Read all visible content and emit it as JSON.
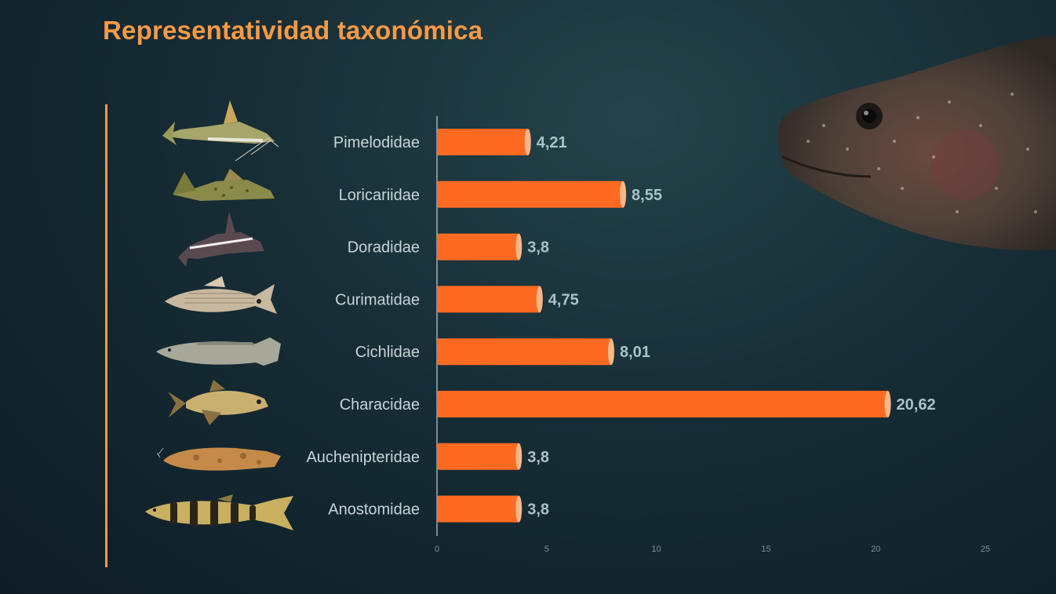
{
  "title": "Representatividad taxonómica",
  "colors": {
    "title": "#f79a45",
    "bar": "#ff6a22",
    "bar_cap": "#f7b78a",
    "label": "#c8d4d8",
    "value": "#a9c3c9",
    "tick": "#7f8f96"
  },
  "chart_data": {
    "type": "bar",
    "orientation": "horizontal",
    "categories": [
      "Pimelodidae",
      "Loricariidae",
      "Doradidae",
      "Curimatidae",
      "Cichlidae",
      "Characidae",
      "Auchenipteridae",
      "Anostomidae"
    ],
    "values": [
      4.21,
      8.55,
      3.8,
      4.75,
      8.01,
      20.62,
      3.8,
      3.8
    ],
    "value_labels": [
      "4,21",
      "8,55",
      "3,8",
      "4,75",
      "8,01",
      "20,62",
      "3,8",
      "3,8"
    ],
    "xlim": [
      0,
      25
    ],
    "xticks": [
      "0",
      "5",
      "10",
      "15",
      "20",
      "25"
    ],
    "legend": "none",
    "grid": false
  },
  "icons": {
    "thumbnails": [
      "catfish-icon",
      "pleco-icon",
      "doradid-icon",
      "curimatid-icon",
      "cichlid-icon",
      "characid-icon",
      "auchenipterid-icon",
      "anostomid-icon"
    ],
    "photo": "fish-head-photo"
  }
}
